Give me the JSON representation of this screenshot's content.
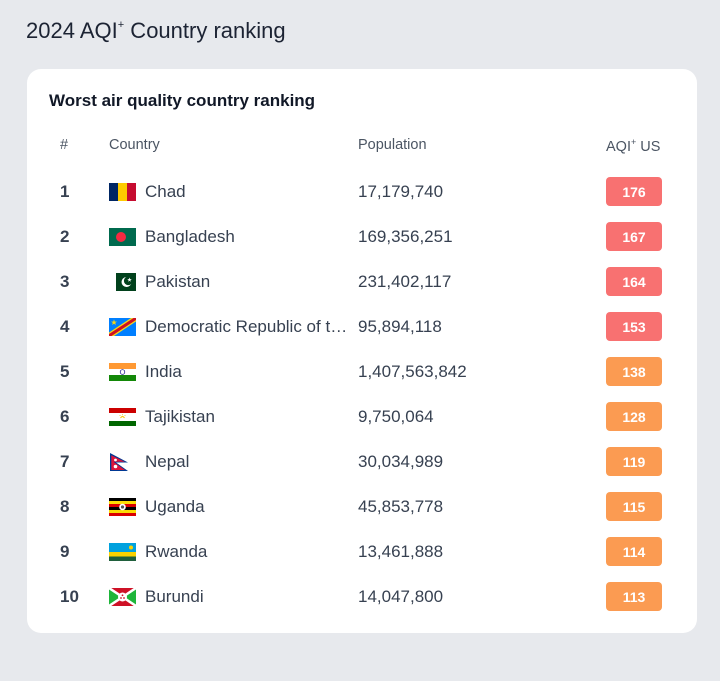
{
  "page": {
    "title_main": "2024 AQI",
    "title_sup": "+",
    "title_rest": " Country ranking"
  },
  "card": {
    "title": "Worst air quality country ranking",
    "headers": {
      "rank": "#",
      "country": "Country",
      "population": "Population",
      "aqi_main": "AQI",
      "aqi_sup": "+",
      "aqi_rest": " US"
    }
  },
  "colors": {
    "unhealthy": "#f87171",
    "sensitive": "#fb9b52"
  },
  "rows": [
    {
      "rank": "1",
      "country": "Chad",
      "flag": "chad-flag",
      "population": "17,179,740",
      "aqi": "176",
      "level": "unhealthy"
    },
    {
      "rank": "2",
      "country": "Bangladesh",
      "flag": "bangladesh-flag",
      "population": "169,356,251",
      "aqi": "167",
      "level": "unhealthy"
    },
    {
      "rank": "3",
      "country": "Pakistan",
      "flag": "pakistan-flag",
      "population": "231,402,117",
      "aqi": "164",
      "level": "unhealthy"
    },
    {
      "rank": "4",
      "country": "Democratic Republic of the Congo",
      "flag": "dr-congo-flag",
      "population": "95,894,118",
      "aqi": "153",
      "level": "unhealthy"
    },
    {
      "rank": "5",
      "country": "India",
      "flag": "india-flag",
      "population": "1,407,563,842",
      "aqi": "138",
      "level": "sensitive"
    },
    {
      "rank": "6",
      "country": "Tajikistan",
      "flag": "tajikistan-flag",
      "population": "9,750,064",
      "aqi": "128",
      "level": "sensitive"
    },
    {
      "rank": "7",
      "country": "Nepal",
      "flag": "nepal-flag",
      "population": "30,034,989",
      "aqi": "119",
      "level": "sensitive"
    },
    {
      "rank": "8",
      "country": "Uganda",
      "flag": "uganda-flag",
      "population": "45,853,778",
      "aqi": "115",
      "level": "sensitive"
    },
    {
      "rank": "9",
      "country": "Rwanda",
      "flag": "rwanda-flag",
      "population": "13,461,888",
      "aqi": "114",
      "level": "sensitive"
    },
    {
      "rank": "10",
      "country": "Burundi",
      "flag": "burundi-flag",
      "population": "14,047,800",
      "aqi": "113",
      "level": "sensitive"
    }
  ]
}
